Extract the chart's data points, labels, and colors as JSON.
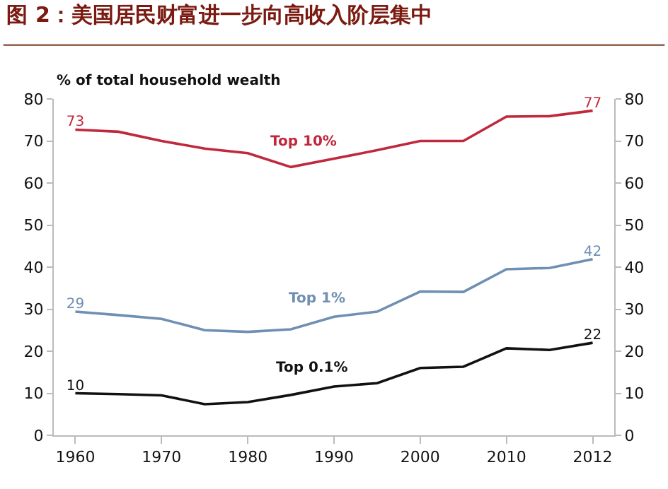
{
  "chart_data": {
    "type": "line",
    "title": "图 2：美国居民财富进一步向高收入阶层集中",
    "ylabel": "% of total household wealth",
    "categories": [
      "1960",
      null,
      "1970",
      null,
      "1980",
      null,
      "1990",
      null,
      "2000",
      null,
      "2010",
      null,
      "2012"
    ],
    "series": [
      {
        "name": "Top 10%",
        "color": "#c0283c",
        "values": [
          72.7,
          72.2,
          70,
          68.2,
          67.1,
          63.8,
          65.8,
          67.8,
          70,
          70,
          75.8,
          75.9,
          77.2
        ],
        "value_labels": [
          "73",
          null,
          null,
          null,
          null,
          null,
          null,
          null,
          null,
          null,
          null,
          null,
          "77"
        ]
      },
      {
        "name": "Top 1%",
        "color": "#6f8fb3",
        "values": [
          29.4,
          28.6,
          27.7,
          25,
          24.6,
          25.2,
          28.2,
          29.4,
          34.2,
          34.1,
          39.5,
          39.8,
          41.9
        ],
        "value_labels": [
          "29",
          null,
          null,
          null,
          null,
          null,
          null,
          null,
          null,
          null,
          null,
          null,
          "42"
        ]
      },
      {
        "name": "Top 0.1%",
        "color": "#111111",
        "values": [
          10,
          9.8,
          9.5,
          7.4,
          7.9,
          9.6,
          11.6,
          12.4,
          16,
          16.3,
          20.7,
          20.3,
          22
        ],
        "value_labels": [
          "10",
          null,
          null,
          null,
          null,
          null,
          null,
          null,
          null,
          null,
          null,
          null,
          "22"
        ]
      }
    ],
    "ylim": [
      0,
      80
    ],
    "yticks": [
      0,
      10,
      20,
      30,
      40,
      50,
      60,
      70,
      80
    ],
    "y2lim": [
      0,
      80
    ],
    "y2ticks": [
      0,
      10,
      20,
      30,
      40,
      50,
      60,
      70,
      80
    ],
    "grid": false,
    "legend": false,
    "marker": "none",
    "line_style": "solid"
  }
}
